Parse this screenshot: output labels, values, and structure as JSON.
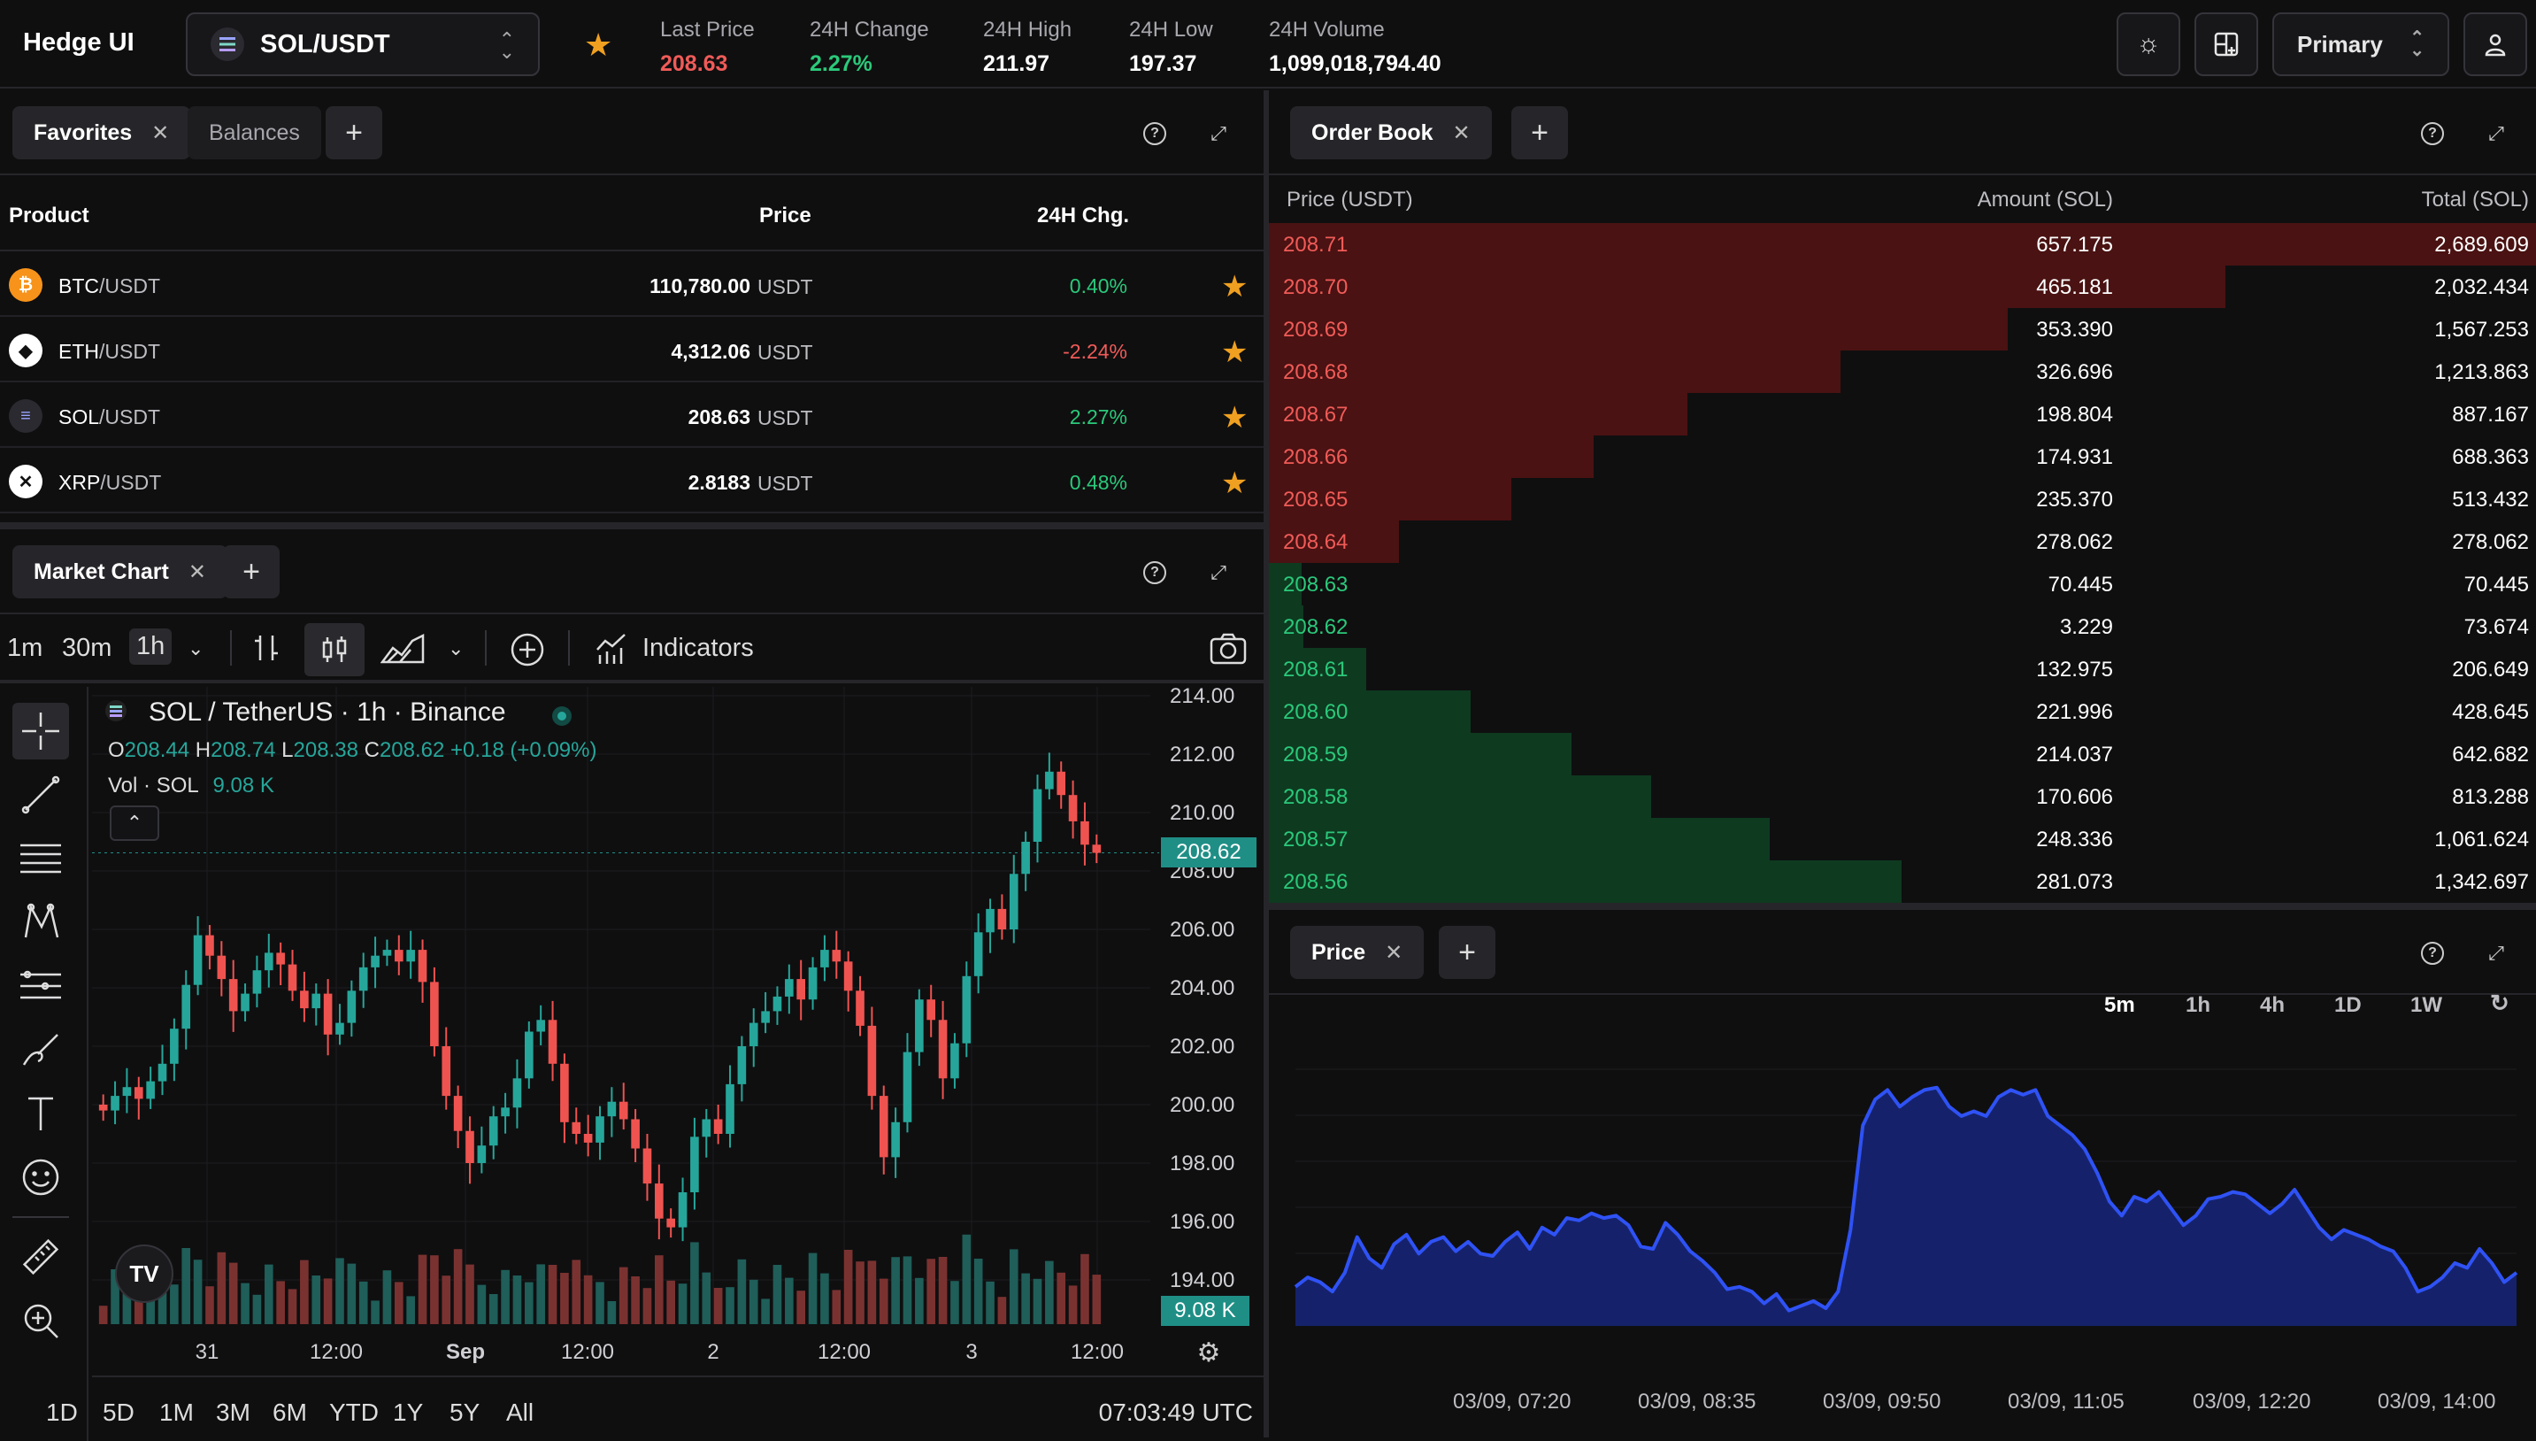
{
  "app": {
    "title": "Hedge UI"
  },
  "pair": {
    "label": "SOL/USDT"
  },
  "stats": [
    {
      "key": "Last Price",
      "value": "208.63",
      "tone": "red"
    },
    {
      "key": "24H Change",
      "value": "2.27%",
      "tone": "green"
    },
    {
      "key": "24H High",
      "value": "211.97",
      "tone": ""
    },
    {
      "key": "24H Low",
      "value": "197.37",
      "tone": ""
    },
    {
      "key": "24H Volume",
      "value": "1,099,018,794.40",
      "tone": ""
    }
  ],
  "toolbar": {
    "account_label": "Primary"
  },
  "favorites_panel": {
    "tabs": [
      {
        "label": "Favorites"
      },
      {
        "label": "Balances"
      }
    ],
    "columns": {
      "product": "Product",
      "price": "Price",
      "change": "24H Chg."
    },
    "rows": [
      {
        "base": "BTC",
        "quote": "/USDT",
        "price": "110,780.00",
        "unit": "USDT",
        "change": "0.40%",
        "tone": "green",
        "icon_color": "#f7931a",
        "icon": "bitcoin-icon"
      },
      {
        "base": "ETH",
        "quote": "/USDT",
        "price": "4,312.06",
        "unit": "USDT",
        "change": "-2.24%",
        "tone": "red",
        "icon_color": "#ffffff",
        "icon": "ethereum-icon"
      },
      {
        "base": "SOL",
        "quote": "/USDT",
        "price": "208.63",
        "unit": "USDT",
        "change": "2.27%",
        "tone": "green",
        "icon_color": "#2a2a30",
        "icon": "solana-icon"
      },
      {
        "base": "XRP",
        "quote": "/USDT",
        "price": "2.8183",
        "unit": "USDT",
        "change": "0.48%",
        "tone": "green",
        "icon_color": "#ffffff",
        "icon": "xrp-icon"
      }
    ]
  },
  "market_chart_panel": {
    "tab": "Market Chart",
    "intervals": [
      "1m",
      "30m",
      "1h"
    ],
    "indicators_label": "Indicators",
    "symbol_title": "SOL / TetherUS · 1h · Binance",
    "ohlc": {
      "o_label": "O",
      "o": "208.44",
      "h_label": "H",
      "h": "208.74",
      "l_label": "L",
      "l": "208.38",
      "c_label": "C",
      "c": "208.62",
      "chg": "+0.18 (+0.09%)"
    },
    "volume": {
      "label": "Vol · SOL",
      "value": "9.08 K"
    },
    "last_price_tag": "208.62",
    "volume_tag": "9.08 K",
    "price_axis": [
      "214.00",
      "212.00",
      "210.00",
      "208.00",
      "206.00",
      "204.00",
      "202.00",
      "200.00",
      "198.00",
      "196.00",
      "194.00"
    ],
    "time_axis": [
      "31",
      "12:00",
      "Sep",
      "12:00",
      "2",
      "12:00",
      "3",
      "12:00"
    ],
    "ranges": [
      "1D",
      "5D",
      "1M",
      "3M",
      "6M",
      "YTD",
      "1Y",
      "5Y",
      "All"
    ],
    "clock": "07:03:49 UTC",
    "colors": {
      "up": "#26a69a",
      "down": "#ef5350"
    }
  },
  "order_book_panel": {
    "tab": "Order Book",
    "columns": {
      "price": "Price (USDT)",
      "amount": "Amount (SOL)",
      "total": "Total (SOL)"
    },
    "asks": [
      {
        "price": "208.71",
        "amount": "657.175",
        "total": "2,689.609",
        "depth": 1.0
      },
      {
        "price": "208.70",
        "amount": "465.181",
        "total": "2,032.434",
        "depth": 0.755
      },
      {
        "price": "208.69",
        "amount": "353.390",
        "total": "1,567.253",
        "depth": 0.583
      },
      {
        "price": "208.68",
        "amount": "326.696",
        "total": "1,213.863",
        "depth": 0.451
      },
      {
        "price": "208.67",
        "amount": "198.804",
        "total": "887.167",
        "depth": 0.33
      },
      {
        "price": "208.66",
        "amount": "174.931",
        "total": "688.363",
        "depth": 0.256
      },
      {
        "price": "208.65",
        "amount": "235.370",
        "total": "513.432",
        "depth": 0.191
      },
      {
        "price": "208.64",
        "amount": "278.062",
        "total": "278.062",
        "depth": 0.103
      }
    ],
    "bids": [
      {
        "price": "208.63",
        "amount": "70.445",
        "total": "70.445",
        "depth": 0.026
      },
      {
        "price": "208.62",
        "amount": "3.229",
        "total": "73.674",
        "depth": 0.027
      },
      {
        "price": "208.61",
        "amount": "132.975",
        "total": "206.649",
        "depth": 0.077
      },
      {
        "price": "208.60",
        "amount": "221.996",
        "total": "428.645",
        "depth": 0.159
      },
      {
        "price": "208.59",
        "amount": "214.037",
        "total": "642.682",
        "depth": 0.239
      },
      {
        "price": "208.58",
        "amount": "170.606",
        "total": "813.288",
        "depth": 0.302
      },
      {
        "price": "208.57",
        "amount": "248.336",
        "total": "1,061.624",
        "depth": 0.395
      },
      {
        "price": "208.56",
        "amount": "281.073",
        "total": "1,342.697",
        "depth": 0.499
      }
    ],
    "colors": {
      "ask_bar": "#4a1212",
      "bid_bar": "#0e3a20",
      "ask_text": "#f05b58",
      "bid_text": "#2bc97a"
    }
  },
  "price_panel": {
    "tab": "Price",
    "ranges": [
      "5m",
      "1h",
      "4h",
      "1D",
      "1W"
    ],
    "active_range": "5m",
    "x_labels": [
      "03/09, 07:20",
      "03/09, 08:35",
      "03/09, 09:50",
      "03/09, 11:05",
      "03/09, 12:20",
      "03/09, 14:00"
    ],
    "line_color": "#2f52f5",
    "fill_color": "#15226b"
  }
}
